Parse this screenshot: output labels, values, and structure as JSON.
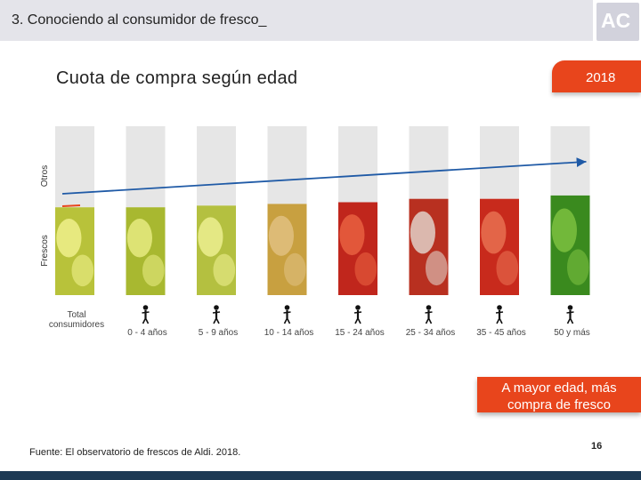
{
  "header": {
    "title": "3. Conociendo al consumidor de fresco_",
    "logo_text": "AC"
  },
  "subtitle": "Cuota de compra según edad",
  "year_badge": "2018",
  "callout": "A mayor edad, más compra de fresco",
  "source": "Fuente: El observatorio de frescos de Aldi. 2018.",
  "page_number": "16",
  "colors": {
    "accent": "#e8451c",
    "footer_bar": "#1d3a55",
    "bar_grey": "#e6e6e6",
    "trend_line": "#1f5aa6"
  },
  "chart_data": {
    "type": "bar",
    "stacked": true,
    "categories": [
      "Total consumidores",
      "0 - 4 años",
      "5 - 9 años",
      "10 - 14 años",
      "15 - 24 años",
      "25 - 34 años",
      "35 - 45 años",
      "50 y más"
    ],
    "category_icons": [
      "",
      "baby-icon",
      "child-icon",
      "kid-icon",
      "teen-icon",
      "adult-icon",
      "runner-icon",
      "senior-icon"
    ],
    "series": [
      {
        "name": "Frescos",
        "values": [
          52,
          52,
          53,
          54,
          55,
          57,
          57,
          59
        ]
      },
      {
        "name": "Otros",
        "values": [
          48,
          48,
          47,
          46,
          45,
          43,
          43,
          41
        ]
      }
    ],
    "ylim": [
      0,
      100
    ],
    "trend_line": {
      "from_category": 0,
      "to_category": 7,
      "direction": "increasing"
    }
  }
}
